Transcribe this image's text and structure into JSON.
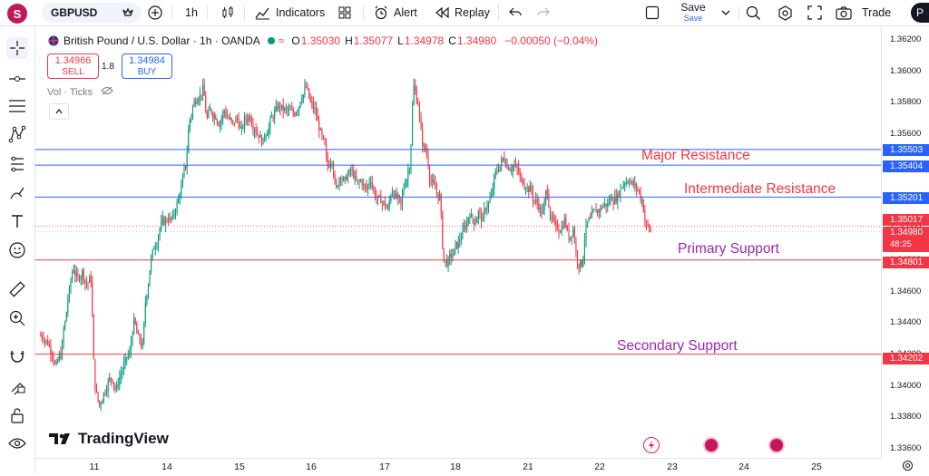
{
  "topbar": {
    "avatar_letter": "S",
    "symbol": "GBPUSD",
    "interval": "1h",
    "indicators_label": "Indicators",
    "alert_label": "Alert",
    "replay_label": "Replay",
    "save_label": "Save",
    "save_sub": "Save",
    "trade_label": "Trade",
    "publish_label": "P"
  },
  "legend": {
    "title": "British Pound / U.S. Dollar · 1h · OANDA",
    "o_label": "O",
    "o": "1.35030",
    "h_label": "H",
    "h": "1.35077",
    "l_label": "L",
    "l": "1.34978",
    "c_label": "C",
    "c": "1.34980",
    "change": "−0.00050 (−0.04%)"
  },
  "trade_panel": {
    "sell_price": "1.34966",
    "sell_label": "SELL",
    "spread": "1.8",
    "buy_price": "1.34984",
    "buy_label": "BUY"
  },
  "volume_label": "Vol · Ticks",
  "watermark": "TradingView",
  "annotations": {
    "major_resistance": "Major Resistance",
    "intermediate_resistance": "Intermediate Resistance",
    "primary_support": "Primary Support",
    "secondary_support": "Secondary Support"
  },
  "colors": {
    "up": "#089981",
    "down": "#f23645",
    "resistance_line": "#2962ff",
    "support_line": "#f23645",
    "resistance_text": "#f23645",
    "support_text": "#9c27b0"
  },
  "price_axis": {
    "labels": [
      "1.36200",
      "1.36000",
      "1.35800",
      "1.35600",
      "1.35400",
      "1.35200",
      "1.35000",
      "1.34800",
      "1.34600",
      "1.34400",
      "1.34200",
      "1.34000",
      "1.33800",
      "1.33600"
    ]
  },
  "level_badges": {
    "major_a": "1.35503",
    "major_b": "1.35404",
    "intermediate": "1.35201",
    "open": "1.35017",
    "last": "1.34980",
    "countdown": "48:25",
    "primary": "1.34801",
    "secondary": "1.34202"
  },
  "time_axis": {
    "labels": [
      "11",
      "14",
      "15",
      "16",
      "17",
      "18",
      "21",
      "22",
      "23",
      "24",
      "25"
    ]
  },
  "chart_data": {
    "type": "candlestick",
    "symbol": "GBPUSD",
    "interval": "1h",
    "x_ticks": [
      "11",
      "14",
      "15",
      "16",
      "17",
      "18",
      "21",
      "22",
      "23",
      "24",
      "25"
    ],
    "ylim": [
      1.336,
      1.3625
    ],
    "horizontal_levels": [
      {
        "name": "Major Resistance",
        "values": [
          1.35503,
          1.35404
        ]
      },
      {
        "name": "Intermediate Resistance",
        "value": 1.35201
      },
      {
        "name": "Primary Support",
        "value": 1.34801
      },
      {
        "name": "Secondary Support",
        "value": 1.34202
      }
    ],
    "price_path": [
      1.3432,
      1.3428,
      1.3422,
      1.3412,
      1.342,
      1.344,
      1.346,
      1.3475,
      1.3468,
      1.3472,
      1.3465,
      1.3468,
      1.34,
      1.3388,
      1.3395,
      1.3402,
      1.3405,
      1.3398,
      1.3408,
      1.3415,
      1.342,
      1.344,
      1.343,
      1.3425,
      1.346,
      1.348,
      1.349,
      1.35,
      1.3505,
      1.3507,
      1.3506,
      1.3515,
      1.3525,
      1.354,
      1.357,
      1.358,
      1.3585,
      1.3588,
      1.357,
      1.3575,
      1.3572,
      1.3568,
      1.3575,
      1.357,
      1.3566,
      1.357,
      1.3562,
      1.357,
      1.3572,
      1.3565,
      1.356,
      1.3555,
      1.3563,
      1.357,
      1.3575,
      1.3578,
      1.3575,
      1.3574,
      1.3573,
      1.3577,
      1.3585,
      1.359,
      1.358,
      1.3575,
      1.3565,
      1.3555,
      1.354,
      1.3545,
      1.3525,
      1.3535,
      1.353,
      1.3535,
      1.3535,
      1.3528,
      1.353,
      1.3525,
      1.3532,
      1.3522,
      1.3518,
      1.3516,
      1.3512,
      1.3525,
      1.352,
      1.3515,
      1.353,
      1.354,
      1.359,
      1.358,
      1.3555,
      1.3548,
      1.353,
      1.3525,
      1.352,
      1.348,
      1.3478,
      1.3483,
      1.349,
      1.3495,
      1.3502,
      1.351,
      1.3505,
      1.351,
      1.3505,
      1.3515,
      1.352,
      1.3535,
      1.354,
      1.3545,
      1.354,
      1.354,
      1.3538,
      1.353,
      1.3528,
      1.3525,
      1.3518,
      1.3515,
      1.351,
      1.3525,
      1.3505,
      1.35,
      1.35,
      1.3505,
      1.3495,
      1.35,
      1.348,
      1.3478,
      1.35,
      1.3505,
      1.351,
      1.3512,
      1.3515,
      1.3515,
      1.352,
      1.352,
      1.3525,
      1.353,
      1.3532,
      1.3528,
      1.3525,
      1.3518,
      1.3502,
      1.3498
    ]
  }
}
